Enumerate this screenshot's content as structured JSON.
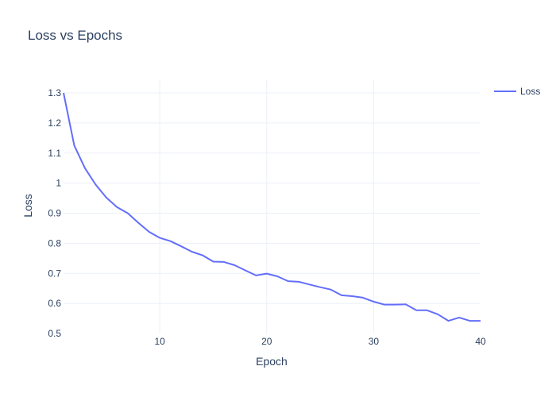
{
  "chart_data": {
    "type": "line",
    "title": "Loss vs Epochs",
    "xlabel": "Epoch",
    "ylabel": "Loss",
    "xlim": [
      1,
      40
    ],
    "ylim": [
      0.5,
      1.3
    ],
    "xticks": [
      10,
      20,
      30,
      40
    ],
    "yticks": [
      0.5,
      0.6,
      0.7,
      0.8,
      0.9,
      1,
      1.1,
      1.2,
      1.3
    ],
    "grid": true,
    "legend": "top-right",
    "colors": {
      "series": "#636efa",
      "grid": "#ebf0f8",
      "text": "#2a3f5f"
    },
    "series": [
      {
        "name": "Loss",
        "x": [
          1,
          2,
          3,
          4,
          5,
          6,
          7,
          8,
          9,
          10,
          11,
          12,
          13,
          14,
          15,
          16,
          17,
          18,
          19,
          20,
          21,
          22,
          23,
          24,
          25,
          26,
          27,
          28,
          29,
          30,
          31,
          32,
          33,
          34,
          35,
          36,
          37,
          38,
          39,
          40
        ],
        "values": [
          1.3,
          1.125,
          1.05,
          0.995,
          0.952,
          0.92,
          0.9,
          0.868,
          0.838,
          0.818,
          0.807,
          0.79,
          0.772,
          0.76,
          0.739,
          0.738,
          0.727,
          0.71,
          0.693,
          0.699,
          0.69,
          0.674,
          0.672,
          0.663,
          0.654,
          0.646,
          0.627,
          0.624,
          0.619,
          0.606,
          0.596,
          0.596,
          0.597,
          0.577,
          0.577,
          0.564,
          0.542,
          0.553,
          0.542,
          0.542
        ]
      }
    ]
  }
}
